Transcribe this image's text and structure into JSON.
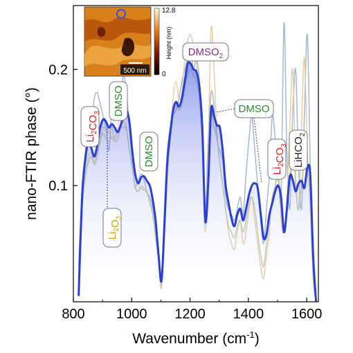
{
  "chart_data": {
    "type": "line",
    "xlabel": "Wavenumber (cm",
    "xlabel_sup": "-1",
    "xlabel_end": ")",
    "ylabel": "nano-FTIR phase (°)",
    "xlim": [
      800,
      1640
    ],
    "ylim": [
      0,
      0.255
    ],
    "x_ticks": [
      800,
      1000,
      1200,
      1400,
      1600
    ],
    "y_ticks": [
      0.1,
      0.2
    ],
    "grid": false,
    "series": [
      {
        "color": "#2a3fd6",
        "highlight": true,
        "x": [
          818,
          830,
          842,
          852,
          862,
          872,
          882,
          892,
          902,
          912,
          922,
          932,
          942,
          952,
          962,
          972,
          982,
          992,
          1002,
          1012,
          1022,
          1032,
          1042,
          1052,
          1062,
          1072,
          1082,
          1092,
          1102,
          1112,
          1122,
          1132,
          1142,
          1152,
          1162,
          1172,
          1182,
          1192,
          1202,
          1212,
          1222,
          1232,
          1242,
          1252,
          1262,
          1272,
          1282,
          1292,
          1302,
          1312,
          1322,
          1332,
          1342,
          1352,
          1362,
          1372,
          1382,
          1392,
          1402,
          1412,
          1422,
          1432,
          1442,
          1452,
          1462,
          1472,
          1482,
          1492,
          1502,
          1512,
          1522,
          1532,
          1542,
          1552,
          1562,
          1572,
          1582,
          1592,
          1602,
          1612,
          1622,
          1632
        ],
        "values": [
          0.005,
          0.09,
          0.125,
          0.138,
          0.132,
          0.125,
          0.135,
          0.15,
          0.157,
          0.155,
          0.15,
          0.153,
          0.15,
          0.146,
          0.152,
          0.16,
          0.165,
          0.155,
          0.13,
          0.11,
          0.102,
          0.107,
          0.108,
          0.104,
          0.1,
          0.088,
          0.07,
          0.04,
          0.018,
          0.065,
          0.12,
          0.145,
          0.165,
          0.172,
          0.168,
          0.175,
          0.19,
          0.205,
          0.205,
          0.2,
          0.198,
          0.185,
          0.15,
          0.07,
          0.1,
          0.165,
          0.16,
          0.152,
          0.15,
          0.13,
          0.1,
          0.085,
          0.072,
          0.065,
          0.075,
          0.08,
          0.07,
          0.08,
          0.092,
          0.1,
          0.102,
          0.098,
          0.076,
          0.055,
          0.058,
          0.075,
          0.085,
          0.095,
          0.1,
          0.09,
          0.06,
          0.08,
          0.108,
          0.105,
          0.095,
          0.102,
          0.104,
          0.098,
          0.115,
          0.11,
          0.04,
          0.0
        ]
      },
      {
        "color": "#9ab0d0",
        "highlight": false,
        "x": [
          818,
          830,
          842,
          852,
          862,
          872,
          882,
          892,
          902,
          912,
          922,
          932,
          942,
          952,
          962,
          972,
          982,
          992,
          1002,
          1012,
          1022,
          1032,
          1042,
          1052,
          1062,
          1072,
          1082,
          1092,
          1102,
          1112,
          1122,
          1132,
          1142,
          1152,
          1162,
          1172,
          1182,
          1192,
          1202,
          1212,
          1222,
          1232,
          1242,
          1252,
          1262,
          1272,
          1282,
          1292,
          1302,
          1312,
          1322,
          1332,
          1342,
          1352,
          1362,
          1372,
          1382,
          1392,
          1402,
          1412,
          1422,
          1432,
          1442,
          1452,
          1462,
          1472,
          1482,
          1492,
          1502,
          1512,
          1522,
          1532,
          1542,
          1552,
          1562,
          1572,
          1582,
          1592,
          1602,
          1612,
          1622,
          1632
        ],
        "values": [
          0.03,
          0.1,
          0.13,
          0.14,
          0.15,
          0.175,
          0.18,
          0.17,
          0.16,
          0.15,
          0.13,
          0.17,
          0.185,
          0.175,
          0.178,
          0.195,
          0.18,
          0.15,
          0.12,
          0.1,
          0.105,
          0.11,
          0.105,
          0.095,
          0.09,
          0.08,
          0.06,
          0.04,
          0.02,
          0.08,
          0.13,
          0.15,
          0.16,
          0.165,
          0.175,
          0.19,
          0.2,
          0.21,
          0.215,
          0.2,
          0.21,
          0.19,
          0.14,
          0.08,
          0.14,
          0.18,
          0.17,
          0.14,
          0.13,
          0.12,
          0.09,
          0.08,
          0.075,
          0.07,
          0.08,
          0.09,
          0.075,
          0.11,
          0.14,
          0.16,
          0.13,
          0.1,
          0.07,
          0.05,
          0.08,
          0.11,
          0.16,
          0.14,
          0.11,
          0.09,
          0.24,
          0.13,
          0.08,
          0.16,
          0.2,
          0.12,
          0.08,
          0.16,
          0.23,
          0.12,
          0.04,
          0.0
        ]
      },
      {
        "color": "#e6c69a",
        "highlight": false,
        "x": [
          818,
          830,
          842,
          852,
          862,
          872,
          882,
          892,
          902,
          912,
          922,
          932,
          942,
          952,
          962,
          972,
          982,
          992,
          1002,
          1012,
          1022,
          1032,
          1042,
          1052,
          1062,
          1072,
          1082,
          1092,
          1102,
          1112,
          1122,
          1132,
          1142,
          1152,
          1162,
          1172,
          1182,
          1192,
          1202,
          1212,
          1222,
          1232,
          1242,
          1252,
          1262,
          1272,
          1282,
          1292,
          1302,
          1312,
          1322,
          1332,
          1342,
          1352,
          1362,
          1372,
          1382,
          1392,
          1402,
          1412,
          1422,
          1432,
          1442,
          1452,
          1462,
          1472,
          1482,
          1492,
          1502,
          1512,
          1522,
          1532,
          1542,
          1552,
          1562,
          1572,
          1582,
          1592,
          1602,
          1612,
          1622,
          1632
        ],
        "values": [
          0.02,
          0.08,
          0.11,
          0.125,
          0.128,
          0.12,
          0.13,
          0.14,
          0.15,
          0.148,
          0.145,
          0.15,
          0.14,
          0.15,
          0.16,
          0.155,
          0.15,
          0.13,
          0.115,
          0.1,
          0.095,
          0.1,
          0.098,
          0.095,
          0.085,
          0.075,
          0.055,
          0.035,
          0.015,
          0.06,
          0.11,
          0.14,
          0.175,
          0.19,
          0.175,
          0.18,
          0.21,
          0.225,
          0.23,
          0.22,
          0.205,
          0.175,
          0.13,
          0.06,
          0.13,
          0.235,
          0.2,
          0.15,
          0.12,
          0.1,
          0.08,
          0.06,
          0.05,
          0.045,
          0.06,
          0.07,
          0.05,
          0.06,
          0.08,
          0.09,
          0.07,
          0.05,
          0.03,
          0.02,
          0.04,
          0.06,
          0.09,
          0.1,
          0.12,
          0.07,
          0.06,
          0.09,
          0.15,
          0.2,
          0.11,
          0.08,
          0.15,
          0.21,
          0.13,
          0.08,
          0.02,
          0.0
        ]
      },
      {
        "color": "#b9c99a",
        "highlight": false,
        "x": [
          818,
          830,
          842,
          852,
          862,
          872,
          882,
          892,
          902,
          912,
          922,
          932,
          942,
          952,
          962,
          972,
          982,
          992,
          1002,
          1012,
          1022,
          1032,
          1042,
          1052,
          1062,
          1072,
          1082,
          1092,
          1102,
          1112,
          1122,
          1132,
          1142,
          1152,
          1162,
          1172,
          1182,
          1192,
          1202,
          1212,
          1222,
          1232,
          1242,
          1252,
          1262,
          1272,
          1282,
          1292,
          1302,
          1312,
          1322,
          1332,
          1342,
          1352,
          1362,
          1372,
          1382,
          1392,
          1402,
          1412,
          1422,
          1432,
          1442,
          1452,
          1462,
          1472,
          1482,
          1492,
          1502,
          1512,
          1522,
          1532,
          1542,
          1552,
          1562,
          1572,
          1582,
          1592,
          1602,
          1612,
          1622,
          1632
        ],
        "values": [
          0.02,
          0.08,
          0.11,
          0.12,
          0.125,
          0.118,
          0.125,
          0.138,
          0.145,
          0.14,
          0.138,
          0.142,
          0.138,
          0.14,
          0.15,
          0.15,
          0.148,
          0.13,
          0.115,
          0.098,
          0.095,
          0.098,
          0.096,
          0.094,
          0.085,
          0.075,
          0.055,
          0.035,
          0.012,
          0.06,
          0.11,
          0.14,
          0.16,
          0.17,
          0.165,
          0.17,
          0.185,
          0.195,
          0.2,
          0.195,
          0.19,
          0.175,
          0.14,
          0.07,
          0.1,
          0.16,
          0.15,
          0.14,
          0.12,
          0.1,
          0.08,
          0.065,
          0.06,
          0.055,
          0.065,
          0.07,
          0.06,
          0.07,
          0.085,
          0.09,
          0.08,
          0.06,
          0.04,
          0.03,
          0.05,
          0.07,
          0.09,
          0.1,
          0.105,
          0.08,
          0.06,
          0.08,
          0.105,
          0.14,
          0.1,
          0.08,
          0.1,
          0.12,
          0.11,
          0.09,
          0.02,
          0.0
        ]
      }
    ],
    "annotations": [
      {
        "label": "Li",
        "sub": "2",
        "label2": "CO",
        "sub2": "3",
        "color": "#e02020",
        "x": 852,
        "y": 0.138,
        "side": "above"
      },
      {
        "label": "DMSO",
        "sub": "",
        "label2": "",
        "sub2": "",
        "color": "#2a8a2a",
        "x": 962,
        "y": 0.155,
        "side": "above"
      },
      {
        "label": "Li",
        "sub": "2",
        "label2": "O",
        "sub2": "2",
        "color": "#e0a000",
        "x": 917,
        "y": 0.152,
        "side": "below"
      },
      {
        "label": "DMSO",
        "sub": "",
        "label2": "",
        "sub2": "",
        "color": "#2a8a2a",
        "x": 1048,
        "y": 0.106,
        "side": "above"
      },
      {
        "label": "DMSO",
        "sub": "",
        "label2": "",
        "sub2": "",
        "color": "#8a2a8a",
        "label2_text": "",
        "x": 1207,
        "y": 0.205,
        "side": "above"
      },
      {
        "label": "DMSO",
        "sub": "",
        "label2": "",
        "sub2": "",
        "color": "#2a8a2a",
        "x": 1280,
        "y": 0.165,
        "side": "right"
      },
      {
        "label": "Li",
        "sub": "2",
        "label2": "CO",
        "sub2": "3",
        "color": "#e02020",
        "x": 1505,
        "y": 0.1,
        "side": "above"
      },
      {
        "label": "LiHCO",
        "sub": "2",
        "label2": "",
        "sub2": "",
        "color": "#222222",
        "x": 1598,
        "y": 0.115,
        "side": "above"
      }
    ],
    "dmso2_label": "DMSO",
    "dmso2_sub": "2"
  },
  "inset": {
    "colorbar_max": "12.8",
    "colorbar_min": "0",
    "colorbar_label": "Height (nm)",
    "scale_bar": "500 nm"
  }
}
